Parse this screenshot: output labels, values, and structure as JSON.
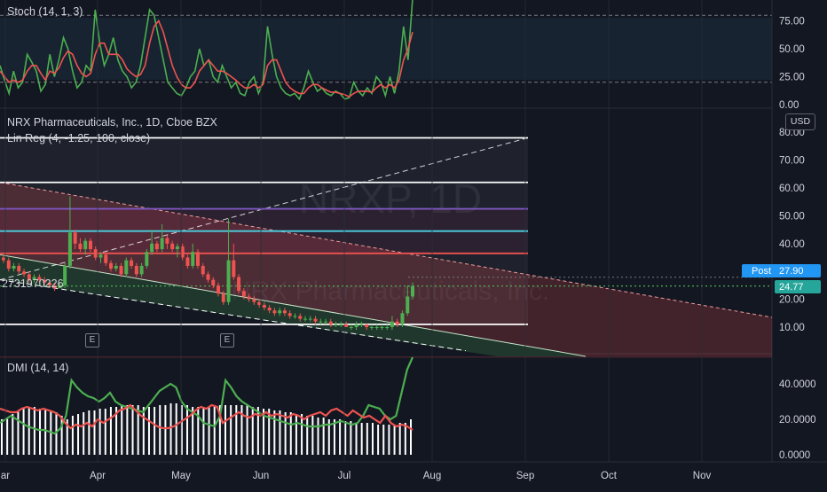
{
  "panels": {
    "stoch": {
      "label": "Stoch (14, 1, 3)",
      "y_ticks": [
        "75.00",
        "50.00",
        "25.00",
        "0.00"
      ]
    },
    "price": {
      "title": "NRX Pharmaceuticals, Inc., 1D, Cboe BZX",
      "indicator": "Lin Reg (4, -1.25, 100, close)",
      "currency": "USD",
      "watermark": "NRXP, 1D",
      "watermark_sub": "NRX Pharmaceuticals, Inc.",
      "left_value": "2731970226",
      "y_ticks": [
        "80.00",
        "70.00",
        "60.00",
        "50.00",
        "40.00",
        "30.00",
        "20.00",
        "10.00"
      ],
      "post_label": "Post",
      "post_price": "27.90",
      "last_price": "24.77",
      "earnings_marker": "E"
    },
    "dmi": {
      "label": "DMI (14, 14)",
      "y_ticks": [
        "40.0000",
        "20.0000",
        "0.0000"
      ]
    }
  },
  "x_axis": {
    "labels": [
      "ar",
      "Apr",
      "May",
      "Jun",
      "Jul",
      "Aug",
      "Sep",
      "Oct",
      "Nov"
    ]
  },
  "colors": {
    "background": "#131722",
    "up": "#4caf50",
    "down": "#ef5350",
    "stoch_k": "#4caf50",
    "stoch_d": "#ef5350",
    "dmi_plus": "#4caf50",
    "dmi_minus": "#ef5350",
    "adx_hist": "#ffffff",
    "post_badge": "#2196f3",
    "last_badge": "#26a69a"
  },
  "chart_data": [
    {
      "type": "line",
      "title": "Stoch (14, 1, 3)",
      "ylim": [
        0,
        100
      ],
      "bands": [
        20,
        80
      ],
      "series": [
        {
          "name": "%K",
          "values": [
            35,
            22,
            10,
            30,
            15,
            20,
            45,
            38,
            30,
            12,
            18,
            45,
            25,
            40,
            60,
            50,
            30,
            15,
            20,
            35,
            30,
            85,
            55,
            35,
            45,
            60,
            40,
            30,
            25,
            15,
            20,
            35,
            60,
            85,
            80,
            60,
            40,
            20,
            15,
            10,
            8,
            15,
            25,
            30,
            50,
            35,
            40,
            25,
            20,
            35,
            25,
            15,
            20,
            10,
            8,
            20,
            25,
            10,
            20,
            70,
            45,
            25,
            15,
            10,
            8,
            10,
            5,
            15,
            30,
            20,
            12,
            15,
            10,
            8,
            12,
            10,
            5,
            6,
            20,
            12,
            8,
            15,
            10,
            25,
            20,
            8,
            25,
            10,
            30,
            70,
            40,
            95
          ]
        },
        {
          "name": "%D",
          "values": [
            30,
            25,
            20,
            22,
            20,
            22,
            30,
            35,
            35,
            28,
            22,
            30,
            28,
            33,
            42,
            48,
            45,
            35,
            28,
            25,
            28,
            45,
            55,
            55,
            45,
            45,
            45,
            40,
            32,
            28,
            25,
            27,
            35,
            55,
            70,
            75,
            65,
            50,
            35,
            25,
            18,
            15,
            15,
            20,
            30,
            35,
            40,
            35,
            30,
            30,
            28,
            25,
            22,
            18,
            15,
            15,
            18,
            15,
            18,
            35,
            40,
            40,
            30,
            20,
            15,
            12,
            10,
            10,
            15,
            18,
            18,
            15,
            13,
            11,
            11,
            10,
            9,
            7,
            10,
            12,
            12,
            12,
            11,
            15,
            18,
            15,
            18,
            15,
            22,
            40,
            50,
            65
          ]
        }
      ]
    },
    {
      "type": "candlestick",
      "title": "NRX Pharmaceuticals, Inc., 1D, Cboe BZX",
      "ylim": [
        0,
        85
      ],
      "ohlc": [
        [
          35,
          36,
          33,
          34
        ],
        [
          34,
          35,
          30,
          31
        ],
        [
          31,
          33,
          30,
          32
        ],
        [
          32,
          33,
          29,
          30
        ],
        [
          30,
          31,
          28,
          29
        ],
        [
          29,
          30,
          26,
          27
        ],
        [
          27,
          29,
          26,
          28
        ],
        [
          28,
          29,
          26,
          27
        ],
        [
          27,
          28,
          25,
          26
        ],
        [
          26,
          27,
          24,
          25
        ],
        [
          25,
          26,
          23,
          24
        ],
        [
          24,
          26,
          24,
          25
        ],
        [
          25,
          33,
          24,
          32
        ],
        [
          32,
          57,
          31,
          44
        ],
        [
          44,
          45,
          38,
          40
        ],
        [
          40,
          42,
          37,
          38
        ],
        [
          38,
          42,
          36,
          41
        ],
        [
          41,
          42,
          37,
          38
        ],
        [
          38,
          39,
          34,
          35
        ],
        [
          35,
          37,
          33,
          36
        ],
        [
          36,
          37,
          32,
          33
        ],
        [
          33,
          34,
          30,
          31
        ],
        [
          31,
          33,
          30,
          32
        ],
        [
          32,
          33,
          28,
          29
        ],
        [
          29,
          35,
          28,
          34
        ],
        [
          34,
          35,
          31,
          32
        ],
        [
          32,
          33,
          28,
          29
        ],
        [
          29,
          33,
          28,
          32
        ],
        [
          32,
          38,
          31,
          37
        ],
        [
          37,
          45,
          36,
          40
        ],
        [
          40,
          41,
          37,
          38
        ],
        [
          38,
          47,
          37,
          42
        ],
        [
          42,
          43,
          38,
          40
        ],
        [
          40,
          41,
          37,
          38
        ],
        [
          38,
          40,
          35,
          39
        ],
        [
          39,
          40,
          34,
          35
        ],
        [
          35,
          36,
          31,
          32
        ],
        [
          32,
          40,
          31,
          37
        ],
        [
          37,
          38,
          31,
          32
        ],
        [
          32,
          33,
          28,
          29
        ],
        [
          29,
          30,
          26,
          27
        ],
        [
          27,
          28,
          24,
          25
        ],
        [
          25,
          26,
          21,
          22
        ],
        [
          22,
          23,
          18,
          19
        ],
        [
          19,
          49,
          18,
          34
        ],
        [
          34,
          40,
          27,
          28
        ],
        [
          28,
          29,
          22,
          23
        ],
        [
          23,
          24,
          20,
          21
        ],
        [
          21,
          22,
          19,
          20
        ],
        [
          20,
          21,
          18,
          19
        ],
        [
          19,
          20,
          17,
          18
        ],
        [
          18,
          19,
          16,
          17
        ],
        [
          17,
          18,
          15,
          16
        ],
        [
          16,
          17,
          14,
          15
        ],
        [
          15,
          17,
          14,
          16
        ],
        [
          16,
          17,
          14,
          15
        ],
        [
          15,
          16,
          13,
          14
        ],
        [
          14,
          15,
          13,
          14
        ],
        [
          14,
          15,
          12,
          13
        ],
        [
          13,
          14,
          12,
          13
        ],
        [
          13,
          14,
          12,
          13
        ],
        [
          13,
          14,
          11,
          12
        ],
        [
          12,
          13,
          11,
          12
        ],
        [
          12,
          13,
          11,
          12
        ],
        [
          12,
          13,
          10,
          11
        ],
        [
          11,
          12,
          10,
          11
        ],
        [
          11,
          12,
          10,
          11
        ],
        [
          11,
          12,
          10,
          10
        ],
        [
          10,
          11,
          9,
          10
        ],
        [
          10,
          12,
          9,
          11
        ],
        [
          11,
          12,
          10,
          11
        ],
        [
          11,
          11,
          9,
          10
        ],
        [
          10,
          11,
          9,
          10
        ],
        [
          10,
          11,
          9,
          10
        ],
        [
          10,
          11,
          9,
          10
        ],
        [
          10,
          11,
          9,
          10
        ],
        [
          10,
          14,
          9,
          12
        ],
        [
          12,
          13,
          10,
          11
        ],
        [
          11,
          16,
          10,
          15
        ],
        [
          15,
          25,
          14,
          21
        ],
        [
          21,
          26,
          20,
          24.77
        ]
      ],
      "price_levels": [
        78,
        62,
        52.5,
        44.5,
        36.5,
        11
      ],
      "post_price": 27.9,
      "last_price": 24.77
    },
    {
      "type": "line",
      "title": "DMI (14, 14)",
      "ylim": [
        0,
        55
      ],
      "series": [
        {
          "name": "+DI",
          "values": [
            18,
            20,
            22,
            20,
            18,
            16,
            15,
            14,
            14,
            13,
            12,
            15,
            22,
            42,
            38,
            35,
            33,
            32,
            30,
            32,
            35,
            30,
            28,
            27,
            26,
            25,
            24,
            28,
            32,
            36,
            38,
            40,
            38,
            30,
            26,
            24,
            22,
            18,
            17,
            16,
            22,
            42,
            38,
            33,
            30,
            28,
            26,
            24,
            22,
            21,
            20,
            19,
            18,
            17,
            18,
            17,
            16,
            16,
            16,
            17,
            17,
            18,
            19,
            18,
            17,
            18,
            22,
            28,
            27,
            26,
            22,
            20,
            22,
            35,
            48,
            55
          ]
        },
        {
          "name": "-DI",
          "values": [
            26,
            25,
            24,
            24,
            26,
            27,
            26,
            25,
            26,
            25,
            24,
            22,
            18,
            15,
            17,
            16,
            18,
            16,
            20,
            18,
            20,
            22,
            25,
            26,
            28,
            25,
            22,
            20,
            18,
            16,
            15,
            15,
            16,
            18,
            20,
            22,
            25,
            27,
            26,
            28,
            27,
            18,
            20,
            22,
            24,
            22,
            21,
            23,
            22,
            24,
            22,
            23,
            22,
            21,
            23,
            22,
            20,
            22,
            23,
            24,
            22,
            25,
            26,
            24,
            22,
            25,
            23,
            21,
            22,
            20,
            18,
            22,
            18,
            16,
            17,
            16,
            14
          ]
        },
        {
          "name": "ADX",
          "values": [
            20,
            21,
            23,
            25,
            26,
            27,
            27,
            26,
            26,
            25,
            24,
            22,
            20,
            22,
            23,
            24,
            25,
            25,
            26,
            26,
            27,
            27,
            28,
            28,
            28,
            28,
            27,
            27,
            27,
            28,
            28,
            29,
            29,
            28,
            28,
            27,
            27,
            27,
            27,
            27,
            28,
            28,
            28,
            28,
            28,
            28,
            27,
            27,
            26,
            26,
            25,
            25,
            24,
            24,
            23,
            23,
            22,
            22,
            21,
            21,
            20,
            20,
            20,
            19,
            19,
            18,
            18,
            18,
            18,
            17,
            17,
            17,
            17,
            18,
            18,
            20
          ]
        }
      ]
    }
  ]
}
